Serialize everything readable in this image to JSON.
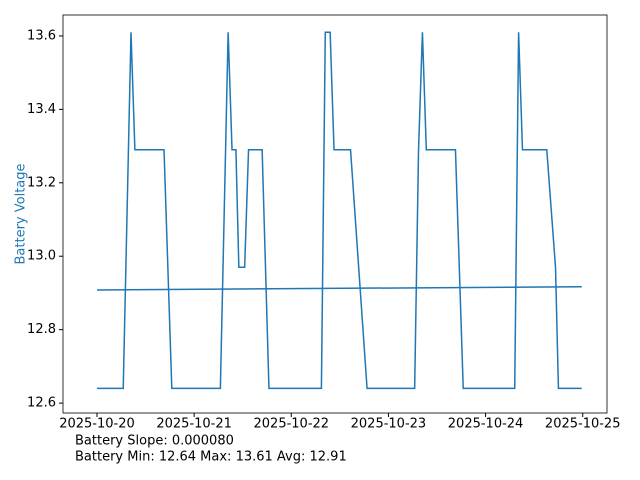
{
  "chart_data": {
    "type": "line",
    "y_label": "Battery Voltage",
    "y_label_color": "#1f77b4",
    "annotations": [
      "Battery Slope: 0.000080",
      "Battery Min: 12.64 Max: 13.61 Avg: 12.91"
    ],
    "series": [
      {
        "color": "#1f77b4",
        "x": [
          0.0,
          0.27,
          0.35,
          0.39,
          0.69,
          0.77,
          1.27,
          1.35,
          1.39,
          1.43,
          1.46,
          1.52,
          1.56,
          1.7,
          1.77,
          2.31,
          2.35,
          2.4,
          2.44,
          2.61,
          2.78,
          3.27,
          3.31,
          3.35,
          3.39,
          3.69,
          3.77,
          4.3,
          4.34,
          4.38,
          4.63,
          4.72,
          4.75,
          4.99
        ],
        "values": [
          12.64,
          12.64,
          13.61,
          13.29,
          13.29,
          12.64,
          12.64,
          13.61,
          13.29,
          13.29,
          12.97,
          12.97,
          13.29,
          13.29,
          12.64,
          12.64,
          13.61,
          13.61,
          13.29,
          13.29,
          12.64,
          12.64,
          13.29,
          13.61,
          13.29,
          13.29,
          12.64,
          12.64,
          13.61,
          13.29,
          13.29,
          12.97,
          12.64,
          12.64
        ]
      },
      {
        "color": "#1f77b4",
        "x": [
          0.0,
          4.99
        ],
        "values": [
          12.908,
          12.917
        ]
      }
    ],
    "xlim": [
      -0.35,
      5.25
    ],
    "xticks": [
      {
        "value": 0,
        "label": "2025-10-20"
      },
      {
        "value": 1,
        "label": "2025-10-21"
      },
      {
        "value": 2,
        "label": "2025-10-22"
      },
      {
        "value": 3,
        "label": "2025-10-23"
      },
      {
        "value": 4,
        "label": "2025-10-24"
      },
      {
        "value": 5,
        "label": "2025-10-25"
      }
    ],
    "ylim": [
      12.573,
      13.657
    ],
    "yticks": [
      12.6,
      12.8,
      {
        "value": 13,
        "label": "13.0"
      },
      13.2,
      13.4,
      13.6
    ],
    "grid": false
  }
}
